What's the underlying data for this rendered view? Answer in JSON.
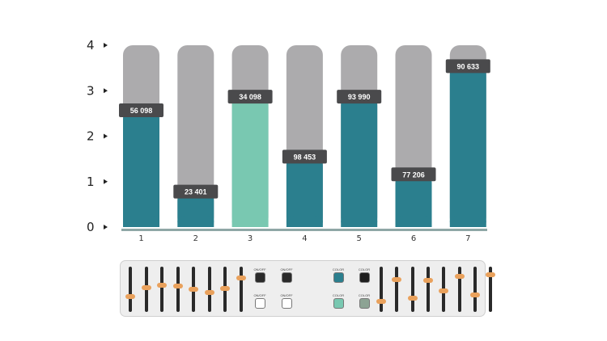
{
  "chart_data": {
    "type": "bar",
    "categories": [
      "1",
      "2",
      "3",
      "4",
      "5",
      "6",
      "7"
    ],
    "values": [
      2.57,
      0.78,
      2.87,
      1.55,
      2.87,
      1.16,
      3.54
    ],
    "value_labels": [
      "56 098",
      "23 401",
      "34 098",
      "98 453",
      "93 990",
      "77 206",
      "90 633"
    ],
    "background_max": 4,
    "yticks": [
      0,
      1,
      2,
      3,
      4
    ],
    "ylim": [
      0,
      4
    ],
    "title": "",
    "xlabel": "",
    "ylabel": "",
    "colors": {
      "bar": "#2b7f8e",
      "highlight_bar": "#79c8b1",
      "background": "#acabad",
      "label_box": "#4a4a4c",
      "axis": "#8fa7a6"
    },
    "highlight_index": 2
  },
  "control_panel": {
    "left_slider_levels": [
      0.32,
      0.55,
      0.6,
      0.58,
      0.5,
      0.42,
      0.52,
      0.78
    ],
    "right_slider_levels": [
      0.2,
      0.75,
      0.28,
      0.72,
      0.46,
      0.82,
      0.36,
      0.86
    ],
    "toggles": [
      {
        "label": "ON/OFF",
        "color": "#2a2a2a"
      },
      {
        "label": "ON/OFF",
        "color": "#2a2a2a"
      },
      {
        "label": "ON/OFF",
        "color": "#ffffff"
      },
      {
        "label": "ON/OFF",
        "color": "#ffffff"
      }
    ],
    "colors": [
      {
        "label": "COLOR",
        "color": "#2b7f8e"
      },
      {
        "label": "COLOR",
        "color": "#1f1f1f"
      },
      {
        "label": "COLOR",
        "color": "#79c8b1"
      },
      {
        "label": "COLOR",
        "color": "#8da394"
      }
    ],
    "knob_color": "#e9a15c"
  }
}
